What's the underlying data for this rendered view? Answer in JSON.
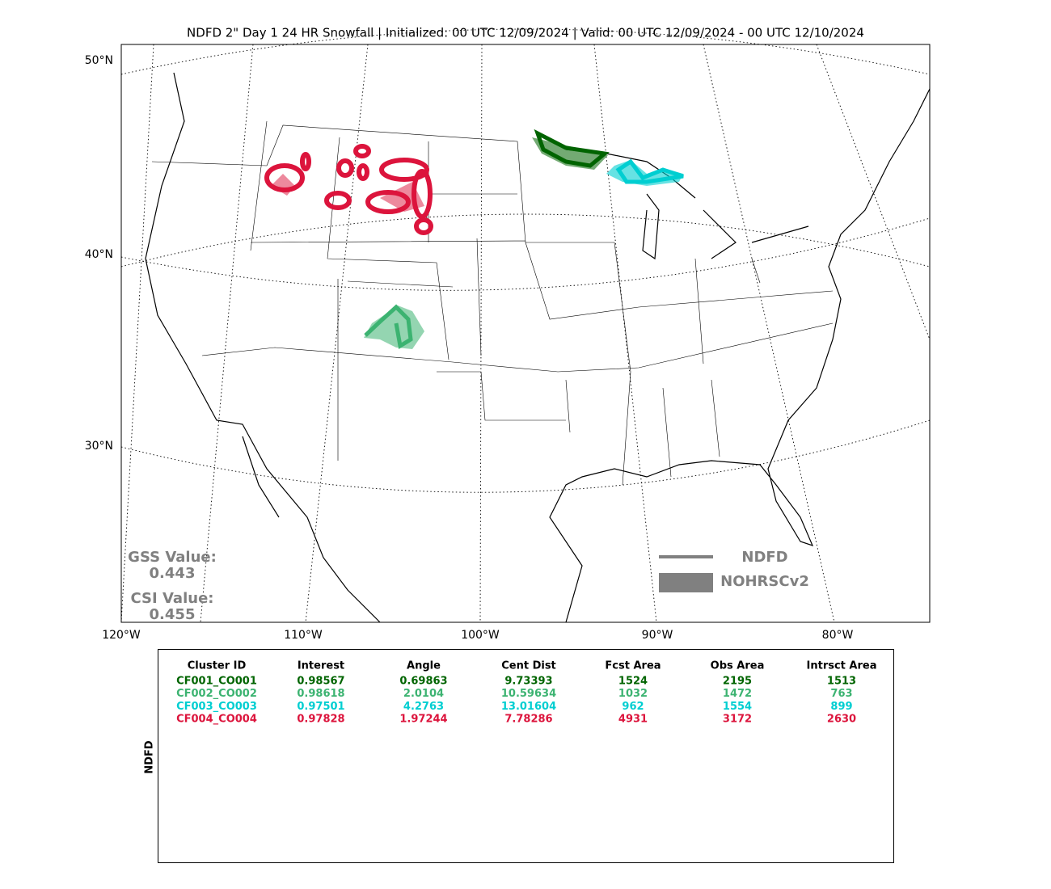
{
  "title": "NDFD 2\" Day 1 24 HR Snowfall | Initialized: 00 UTC 12/09/2024 | Valid: 00 UTC 12/09/2024 - 00 UTC 12/10/2024",
  "map": {
    "lat_labels": [
      "50°N",
      "40°N",
      "30°N"
    ],
    "lon_labels": [
      "120°W",
      "110°W",
      "100°W",
      "90°W",
      "80°W"
    ]
  },
  "scores": {
    "gss_label": "GSS Value:",
    "gss_value": "0.443",
    "csi_label": "CSI Value:",
    "csi_value": "0.455"
  },
  "legend": {
    "line": "NDFD",
    "fill": "NOHRSCv2"
  },
  "table": {
    "side_label": "NDFD",
    "headers": [
      "Cluster ID",
      "Interest",
      "Angle",
      "Cent Dist",
      "Fcst Area",
      "Obs Area",
      "Intrsct Area"
    ],
    "rows": [
      [
        "CF001_CO001",
        "0.98567",
        "0.69863",
        "9.73393",
        "1524",
        "2195",
        "1513"
      ],
      [
        "CF002_CO002",
        "0.98618",
        "2.0104",
        "10.59634",
        "1032",
        "1472",
        "763"
      ],
      [
        "CF003_CO003",
        "0.97501",
        "4.2763",
        "13.01604",
        "962",
        "1554",
        "899"
      ],
      [
        "CF004_CO004",
        "0.97828",
        "1.97244",
        "7.78286",
        "4931",
        "3172",
        "2630"
      ]
    ]
  }
}
